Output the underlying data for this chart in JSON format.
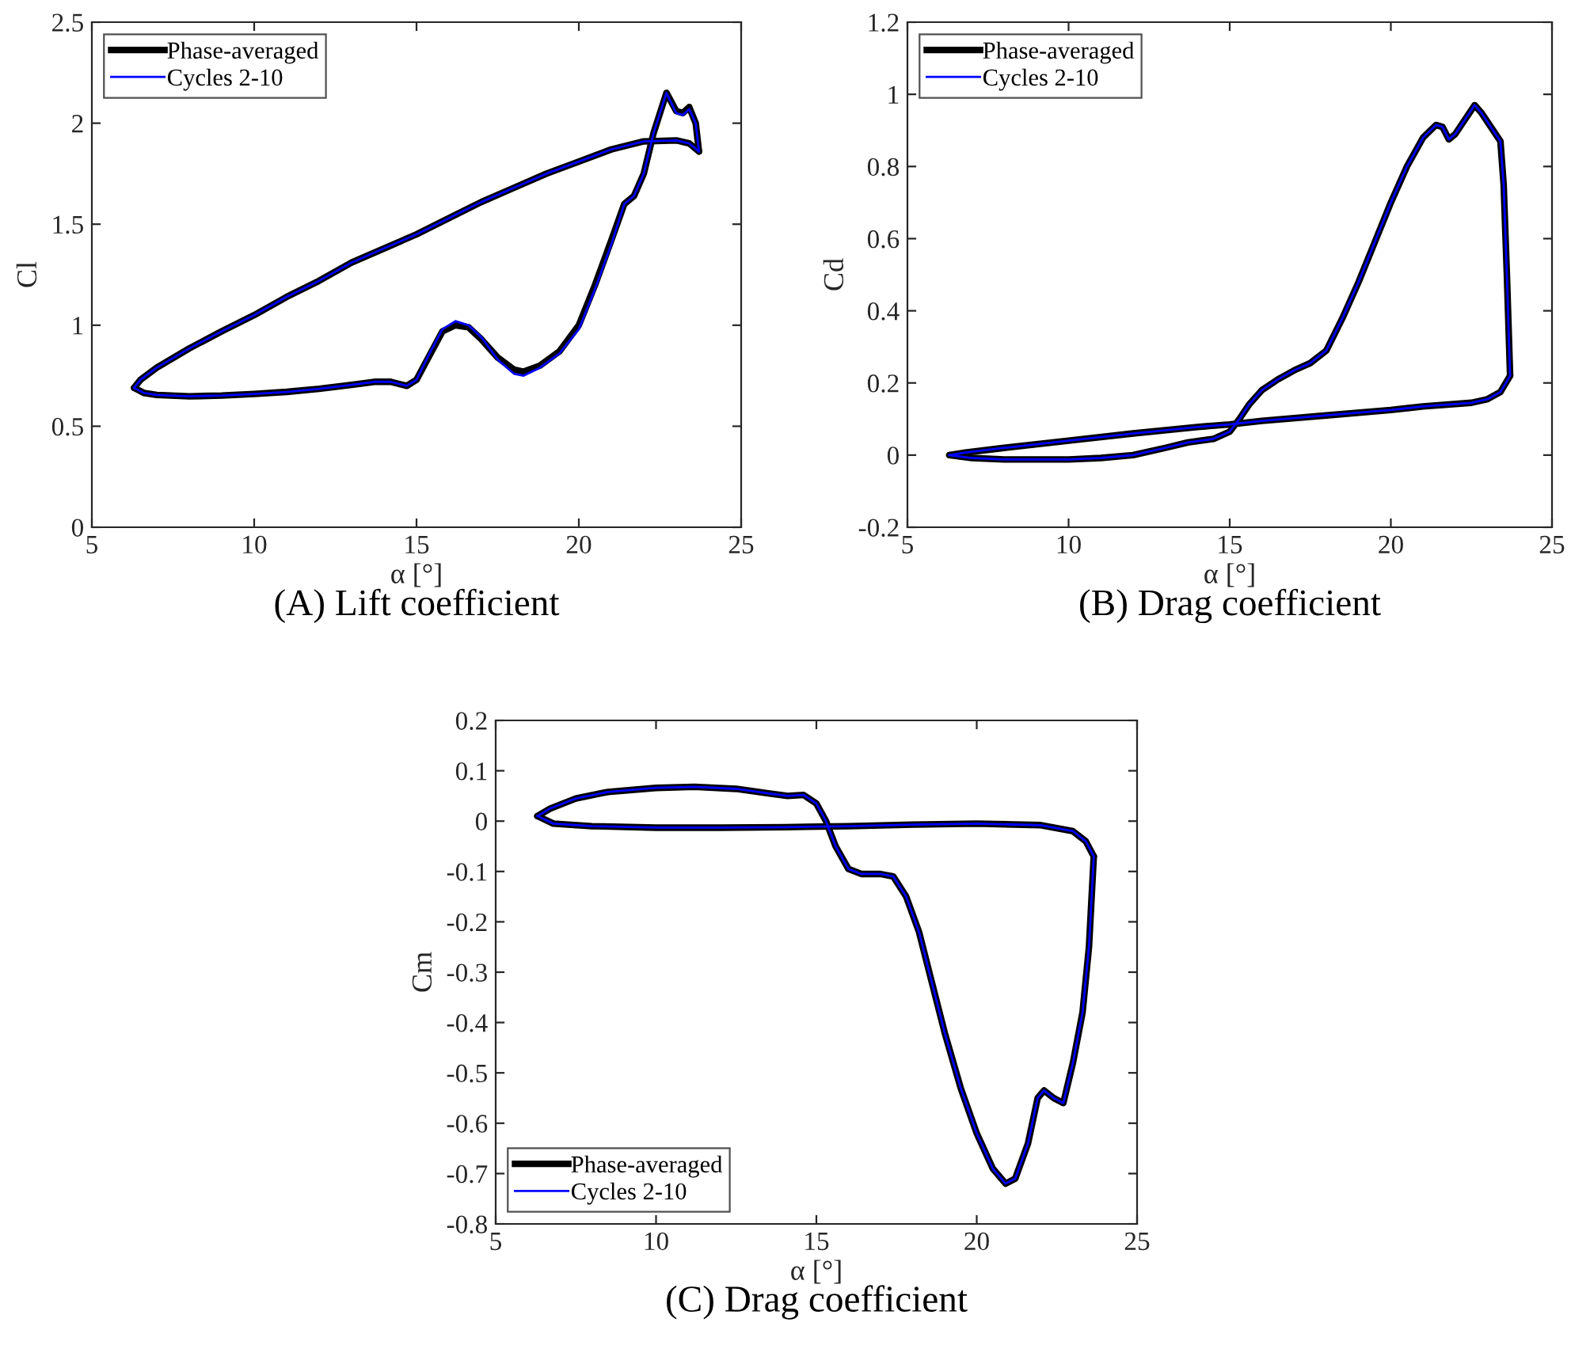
{
  "chart_data": [
    {
      "type": "line",
      "title": "(A) Lift coefficient",
      "xlabel": "α [°]",
      "ylabel": "Cl",
      "xlim": [
        5,
        25
      ],
      "ylim": [
        0,
        2.5
      ],
      "xticks": [
        5,
        10,
        15,
        20,
        25
      ],
      "yticks": [
        0,
        0.5,
        1,
        1.5,
        2,
        2.5
      ],
      "legend": "top left",
      "grid": false,
      "series": [
        {
          "name": "Phase-averaged",
          "color": "#000000",
          "x": [
            6.3,
            6.6,
            7,
            8,
            9,
            10,
            11,
            12,
            13,
            13.7,
            14.2,
            14.7,
            15.0,
            15.4,
            15.8,
            16.2,
            16.6,
            17.0,
            17.5,
            18.0,
            18.3,
            18.8,
            19.4,
            20,
            20.5,
            21,
            21.4,
            21.7,
            22,
            22.3,
            22.7,
            23.0,
            23.2,
            23.4,
            23.6,
            23.7
          ],
          "values": [
            0.69,
            0.665,
            0.655,
            0.648,
            0.652,
            0.66,
            0.67,
            0.685,
            0.705,
            0.72,
            0.72,
            0.7,
            0.73,
            0.85,
            0.97,
            1.0,
            0.99,
            0.93,
            0.84,
            0.78,
            0.77,
            0.8,
            0.87,
            1.0,
            1.2,
            1.42,
            1.6,
            1.64,
            1.75,
            1.95,
            2.15,
            2.06,
            2.05,
            2.08,
            2.0,
            1.86
          ]
        },
        {
          "color": "#000000",
          "x": [
            23.7,
            23.4,
            23,
            22,
            21,
            20,
            19,
            18,
            17,
            16,
            15,
            14,
            13,
            12,
            11,
            10,
            9,
            8,
            7,
            6.5,
            6.3
          ],
          "values": [
            1.86,
            1.9,
            1.915,
            1.91,
            1.87,
            1.81,
            1.75,
            1.68,
            1.61,
            1.53,
            1.45,
            1.38,
            1.31,
            1.22,
            1.14,
            1.05,
            0.97,
            0.885,
            0.79,
            0.73,
            0.69
          ]
        },
        {
          "name": "Cycles 2-10",
          "color": "#0000ff",
          "x": [
            6.3,
            6.6,
            7,
            8,
            9,
            10,
            11,
            12,
            13,
            13.7,
            14.2,
            14.7,
            15.0,
            15.4,
            15.8,
            16.2,
            16.6,
            17.0,
            17.5,
            18.0,
            18.3,
            18.8,
            19.4,
            20,
            20.5,
            21,
            21.4,
            21.7,
            22,
            22.3,
            22.7,
            23.0,
            23.2,
            23.4,
            23.6,
            23.7
          ],
          "values": [
            0.69,
            0.665,
            0.655,
            0.648,
            0.652,
            0.66,
            0.67,
            0.685,
            0.705,
            0.72,
            0.72,
            0.7,
            0.73,
            0.86,
            0.98,
            1.02,
            1.0,
            0.94,
            0.83,
            0.76,
            0.75,
            0.79,
            0.86,
            0.98,
            1.18,
            1.4,
            1.6,
            1.64,
            1.75,
            1.95,
            2.15,
            2.05,
            2.04,
            2.07,
            2.0,
            1.86
          ]
        },
        {
          "color": "#0000ff",
          "x": [
            23.7,
            23.4,
            23,
            22,
            21,
            20,
            19,
            18,
            17,
            16,
            15,
            14,
            13,
            12,
            11,
            10,
            9,
            8,
            7,
            6.5,
            6.3
          ],
          "values": [
            1.86,
            1.9,
            1.915,
            1.91,
            1.87,
            1.81,
            1.75,
            1.68,
            1.61,
            1.53,
            1.45,
            1.38,
            1.31,
            1.22,
            1.14,
            1.05,
            0.97,
            0.885,
            0.79,
            0.73,
            0.69
          ]
        }
      ]
    },
    {
      "type": "line",
      "title": "(B) Drag coefficient",
      "xlabel": "α [°]",
      "ylabel": "Cd",
      "xlim": [
        5,
        25
      ],
      "ylim": [
        -0.2,
        1.2
      ],
      "xticks": [
        5,
        10,
        15,
        20,
        25
      ],
      "yticks": [
        -0.2,
        0,
        0.2,
        0.4,
        0.6,
        0.8,
        1,
        1.2
      ],
      "legend": "top left",
      "grid": false,
      "series": [
        {
          "name": "Phase-averaged",
          "color": "#000000",
          "x": [
            6.3,
            7,
            8,
            9,
            10,
            11,
            12,
            13,
            13.7,
            14.5,
            15.0,
            15.3,
            15.6,
            16,
            16.5,
            17,
            17.5,
            18,
            18.5,
            19,
            19.5,
            20,
            20.5,
            21,
            21.4,
            21.6,
            21.8,
            22.0,
            22.3,
            22.6,
            22.8,
            23.1,
            23.4,
            23.5,
            23.6,
            23.7
          ],
          "values": [
            0.0,
            -0.008,
            -0.012,
            -0.012,
            -0.012,
            -0.008,
            0.0,
            0.02,
            0.035,
            0.045,
            0.065,
            0.1,
            0.14,
            0.18,
            0.21,
            0.235,
            0.255,
            0.29,
            0.38,
            0.48,
            0.59,
            0.7,
            0.8,
            0.88,
            0.915,
            0.91,
            0.875,
            0.89,
            0.93,
            0.97,
            0.95,
            0.91,
            0.87,
            0.75,
            0.5,
            0.22
          ]
        },
        {
          "color": "#000000",
          "x": [
            23.7,
            23.4,
            23,
            22.5,
            21,
            20,
            18,
            16,
            15,
            14,
            12,
            10,
            8,
            6.8,
            6.3
          ],
          "values": [
            0.22,
            0.175,
            0.155,
            0.145,
            0.135,
            0.125,
            0.11,
            0.095,
            0.085,
            0.078,
            0.06,
            0.04,
            0.02,
            0.007,
            0.0
          ]
        },
        {
          "name": "Cycles 2-10",
          "color": "#0000ff",
          "x": [
            6.3,
            7,
            8,
            9,
            10,
            11,
            12,
            13,
            13.7,
            14.5,
            15.0,
            15.3,
            15.6,
            16,
            16.5,
            17,
            17.5,
            18,
            18.5,
            19,
            19.5,
            20,
            20.5,
            21,
            21.4,
            21.6,
            21.8,
            22.0,
            22.3,
            22.6,
            22.8,
            23.1,
            23.4,
            23.5,
            23.6,
            23.7
          ],
          "values": [
            0.0,
            -0.008,
            -0.012,
            -0.012,
            -0.012,
            -0.008,
            0.0,
            0.02,
            0.035,
            0.045,
            0.065,
            0.1,
            0.14,
            0.18,
            0.21,
            0.235,
            0.255,
            0.29,
            0.38,
            0.48,
            0.59,
            0.7,
            0.8,
            0.88,
            0.915,
            0.91,
            0.875,
            0.89,
            0.93,
            0.97,
            0.95,
            0.91,
            0.87,
            0.75,
            0.5,
            0.22
          ]
        },
        {
          "color": "#0000ff",
          "x": [
            23.7,
            23.4,
            23,
            22.5,
            21,
            20,
            18,
            16,
            15,
            14,
            12,
            10,
            8,
            6.8,
            6.3
          ],
          "values": [
            0.22,
            0.175,
            0.155,
            0.145,
            0.135,
            0.125,
            0.11,
            0.095,
            0.085,
            0.078,
            0.06,
            0.04,
            0.02,
            0.007,
            0.0
          ]
        }
      ]
    },
    {
      "type": "line",
      "title": "(C) Drag coefficient",
      "xlabel": "α [°]",
      "ylabel": "Cm",
      "xlim": [
        5,
        25
      ],
      "ylim": [
        -0.8,
        0.2
      ],
      "xticks": [
        5,
        10,
        15,
        20,
        25
      ],
      "yticks": [
        -0.8,
        -0.7,
        -0.6,
        -0.5,
        -0.4,
        -0.3,
        -0.2,
        -0.1,
        0,
        0.1,
        0.2
      ],
      "legend": "bottom left",
      "grid": false,
      "series": [
        {
          "name": "Phase-averaged",
          "color": "#000000",
          "x": [
            6.3,
            6.7,
            7.5,
            8.5,
            10,
            11.2,
            12.5,
            13.5,
            14.1,
            14.6,
            15.0,
            15.3,
            15.6,
            16,
            16.4,
            17,
            17.4,
            17.8,
            18.2,
            18.6,
            19,
            19.5,
            20,
            20.5,
            20.9,
            21.2,
            21.6,
            21.9,
            22.1,
            22.4,
            22.7,
            23,
            23.3,
            23.5,
            23.65
          ],
          "values": [
            0.01,
            0.025,
            0.045,
            0.058,
            0.066,
            0.068,
            0.064,
            0.055,
            0.05,
            0.052,
            0.035,
            0.0,
            -0.05,
            -0.095,
            -0.105,
            -0.105,
            -0.11,
            -0.15,
            -0.22,
            -0.32,
            -0.42,
            -0.53,
            -0.62,
            -0.69,
            -0.72,
            -0.71,
            -0.64,
            -0.55,
            -0.535,
            -0.55,
            -0.56,
            -0.48,
            -0.38,
            -0.25,
            -0.07
          ]
        },
        {
          "color": "#000000",
          "x": [
            23.65,
            23.4,
            23,
            22,
            20,
            18,
            16,
            14,
            12,
            10,
            8,
            6.8,
            6.3
          ],
          "values": [
            -0.07,
            -0.04,
            -0.02,
            -0.008,
            -0.005,
            -0.007,
            -0.01,
            -0.012,
            -0.013,
            -0.013,
            -0.01,
            -0.005,
            0.01
          ]
        },
        {
          "name": "Cycles 2-10",
          "color": "#0000ff",
          "x": [
            6.3,
            6.7,
            7.5,
            8.5,
            10,
            11.2,
            12.5,
            13.5,
            14.1,
            14.6,
            15.0,
            15.3,
            15.6,
            16,
            16.4,
            17,
            17.4,
            17.8,
            18.2,
            18.6,
            19,
            19.5,
            20,
            20.5,
            20.9,
            21.2,
            21.6,
            21.9,
            22.1,
            22.4,
            22.7,
            23,
            23.3,
            23.5,
            23.65
          ],
          "values": [
            0.01,
            0.025,
            0.045,
            0.058,
            0.066,
            0.068,
            0.064,
            0.055,
            0.05,
            0.052,
            0.035,
            0.0,
            -0.05,
            -0.095,
            -0.105,
            -0.105,
            -0.11,
            -0.15,
            -0.22,
            -0.32,
            -0.42,
            -0.53,
            -0.62,
            -0.69,
            -0.72,
            -0.71,
            -0.64,
            -0.55,
            -0.535,
            -0.55,
            -0.56,
            -0.48,
            -0.38,
            -0.25,
            -0.07
          ]
        },
        {
          "color": "#0000ff",
          "x": [
            23.65,
            23.4,
            23,
            22,
            20,
            18,
            16,
            14,
            12,
            10,
            8,
            6.8,
            6.3
          ],
          "values": [
            -0.07,
            -0.04,
            -0.02,
            -0.008,
            -0.005,
            -0.007,
            -0.01,
            -0.012,
            -0.013,
            -0.013,
            -0.01,
            -0.005,
            0.01
          ]
        }
      ]
    }
  ]
}
